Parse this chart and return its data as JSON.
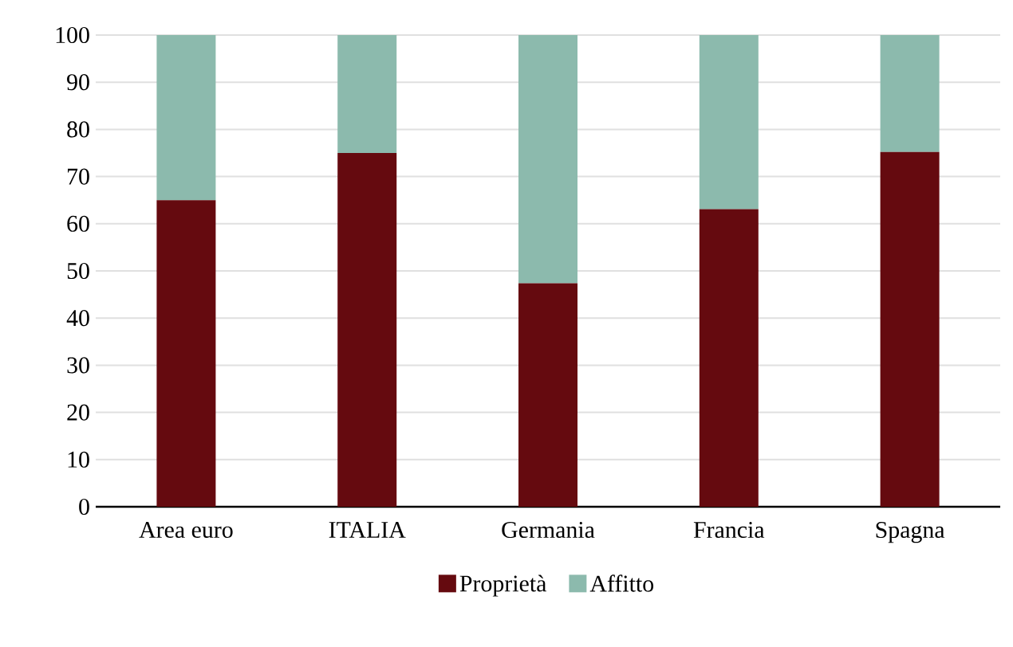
{
  "chart_data": {
    "type": "bar",
    "stacked": true,
    "categories": [
      "Area euro",
      "ITALIA",
      "Germania",
      "Francia",
      "Spagna"
    ],
    "series": [
      {
        "name": "Proprietà",
        "color": "#650a0f",
        "values": [
          65,
          75,
          47.4,
          63.1,
          75.2
        ]
      },
      {
        "name": "Affitto",
        "color": "#8cbaad",
        "values": [
          35,
          25,
          52.6,
          36.9,
          24.8
        ]
      }
    ],
    "ylim": [
      0,
      100
    ],
    "yticks": [
      0,
      10,
      20,
      30,
      40,
      50,
      60,
      70,
      80,
      90,
      100
    ],
    "grid": "y",
    "legend": "bottom"
  }
}
